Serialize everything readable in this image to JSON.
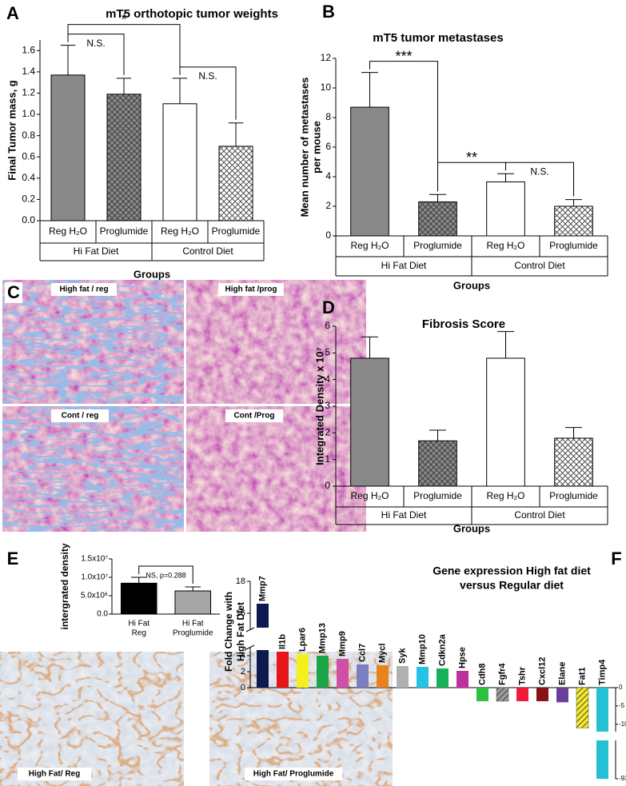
{
  "chart_data": [
    {
      "type": "bar",
      "panel": "A",
      "title": "mT5 orthotopic tumor weights",
      "ylabel": [
        "Final Tumor mass, g"
      ],
      "xlabel": "Groups",
      "categories": [
        "Reg H₂O",
        "Proglumide",
        "Reg H₂O",
        "Proglumide"
      ],
      "groups": [
        "Hi Fat Diet",
        "Control Diet"
      ],
      "values": [
        1.37,
        1.19,
        1.1,
        0.7
      ],
      "errors": [
        0.28,
        0.15,
        0.24,
        0.22
      ],
      "colors": [
        "#898989",
        "#898989",
        "#ffffff",
        "#ffffff"
      ],
      "patterns": [
        "solid",
        "crosshatch",
        "solid",
        "crosshatch"
      ],
      "ylim": [
        0,
        1.7
      ],
      "yticks": [
        {
          "value": 0,
          "label": "0.0"
        },
        0.2,
        0.4,
        0.6,
        0.8,
        {
          "value": 1,
          "label": "1.0"
        },
        1.2,
        1.4,
        1.6
      ],
      "brackets": [
        {
          "label": "N.S.",
          "between": [
            0,
            1
          ]
        },
        {
          "label": "*",
          "between": [
            0,
            2
          ]
        },
        {
          "label": "N.S.",
          "between": [
            2,
            3
          ]
        }
      ]
    },
    {
      "type": "bar",
      "panel": "B",
      "title": "mT5 tumor metastases",
      "ylabel": [
        "Mean number of metastases",
        "per mouse"
      ],
      "xlabel": "Groups",
      "categories": [
        "Reg H₂O",
        "Proglumide",
        "Reg H₂O",
        "Proglumide"
      ],
      "groups": [
        "Hi Fat Diet",
        "Control Diet"
      ],
      "values": [
        8.7,
        2.3,
        3.65,
        2.0
      ],
      "errors": [
        2.35,
        0.5,
        0.55,
        0.45
      ],
      "colors": [
        "#898989",
        "#898989",
        "#ffffff",
        "#ffffff"
      ],
      "patterns": [
        "solid",
        "crosshatch",
        "solid",
        "crosshatch"
      ],
      "ylim": [
        0,
        12
      ],
      "yticks": [
        0,
        2,
        4,
        6,
        8,
        10,
        12
      ],
      "brackets": [
        {
          "label": "***",
          "between": [
            0,
            1
          ]
        },
        {
          "label": "**",
          "between": [
            1,
            2
          ]
        },
        {
          "label": "N.S.",
          "between": [
            2,
            3
          ]
        }
      ]
    },
    {
      "type": "bar",
      "panel": "D",
      "title": "Fibrosis Score",
      "ylabel": [
        "Integrated Density x 10⁷"
      ],
      "xlabel": "Groups",
      "categories": [
        "Reg H₂O",
        "Proglumide",
        "Reg H₂O",
        "Proglumide"
      ],
      "groups": [
        "Hi Fat Diet",
        "Control Diet"
      ],
      "values": [
        4.8,
        1.7,
        4.8,
        1.8
      ],
      "errors": [
        0.8,
        0.4,
        1.0,
        0.4
      ],
      "colors": [
        "#898989",
        "#898989",
        "#ffffff",
        "#ffffff"
      ],
      "patterns": [
        "solid",
        "crosshatch",
        "solid",
        "crosshatch"
      ],
      "ylim": [
        0,
        6
      ],
      "yticks": [
        0,
        1,
        2,
        3,
        4,
        5,
        6
      ]
    },
    {
      "type": "bar",
      "panel": "E",
      "ylabel": [
        "intergrated density"
      ],
      "categories": [
        [
          "Hi Fat",
          "Reg"
        ],
        [
          "Hi Fat",
          "Proglumide"
        ]
      ],
      "values": [
        8400000,
        6300000
      ],
      "errors": [
        1600000,
        1100000
      ],
      "colors": [
        "#000000",
        "#a6a6a6"
      ],
      "patterns": [
        "solid",
        "solid"
      ],
      "ylim": [
        0,
        15000000
      ],
      "yticks": [
        {
          "value": 0,
          "label": "0.0"
        },
        {
          "value": 5000000,
          "label": "5.0x10⁶"
        },
        {
          "value": 10000000,
          "label": "1.0x10⁷"
        },
        {
          "value": 15000000,
          "label": "1.5x10⁷"
        }
      ],
      "brackets": [
        {
          "label": "NS, p=0.288",
          "between": [
            0,
            1
          ]
        }
      ]
    },
    {
      "type": "bar",
      "panel": "F",
      "title": [
        "Gene expression High fat diet",
        "versus Regular diet"
      ],
      "ylabel": [
        "Fold Change with",
        "High Fat Diet"
      ],
      "categories": [
        "Mmp7",
        "Il1b",
        "Lpar6",
        "Mmp13",
        "Mmp9",
        "Ccl7",
        "Mycl",
        "Syk",
        "Mmp10",
        "Cdkn2a",
        "Hpse",
        "Cdh8",
        "Fgfr4",
        "Tshr",
        "Cxcl12",
        "Elane",
        "Fat1",
        "Timp4"
      ],
      "values": [
        16.6,
        4.5,
        4.2,
        4.0,
        3.6,
        2.9,
        2.8,
        2.7,
        2.6,
        2.4,
        2.1,
        -3.7,
        -3.7,
        -3.7,
        -3.7,
        -4.0,
        -11,
        -93
      ],
      "colors": [
        "#0d1a4f",
        "#e8141c",
        "#f5ef1c",
        "#1aa548",
        "#d04fa8",
        "#7b7fc2",
        "#e8821c",
        "#b0b0b0",
        "#25c4e6",
        "#16b25a",
        "#c0309c",
        "#2fbf3f",
        "#9a9a9a",
        "#ee1c3a",
        "#8a0f17",
        "#6a3f9c",
        "#f2e82c",
        "#25c1d3"
      ],
      "patterns": [
        "solid",
        "solid",
        "solid",
        "solid",
        "solid",
        "solid",
        "solid",
        "solid",
        "solid",
        "solid",
        "solid",
        "solid",
        "hatch",
        "solid",
        "solid",
        "solid",
        "hatch",
        "solid"
      ],
      "ylim": [
        0,
        18
      ],
      "ybreak": [
        5,
        15
      ],
      "yticks": [
        0,
        2,
        4,
        16,
        18
      ],
      "y2lim": [
        -93,
        0
      ],
      "y2break": [
        -12,
        -90
      ],
      "y2ticks": [
        0,
        -5,
        -10,
        -93
      ]
    }
  ],
  "histology": {
    "panel": "C",
    "labels": [
      "High fat / reg",
      "High fat /prog",
      "Cont / reg",
      "Cont /Prog"
    ]
  },
  "staining": {
    "labels": [
      "High Fat/ Reg",
      "High Fat/ Proglumide"
    ]
  }
}
